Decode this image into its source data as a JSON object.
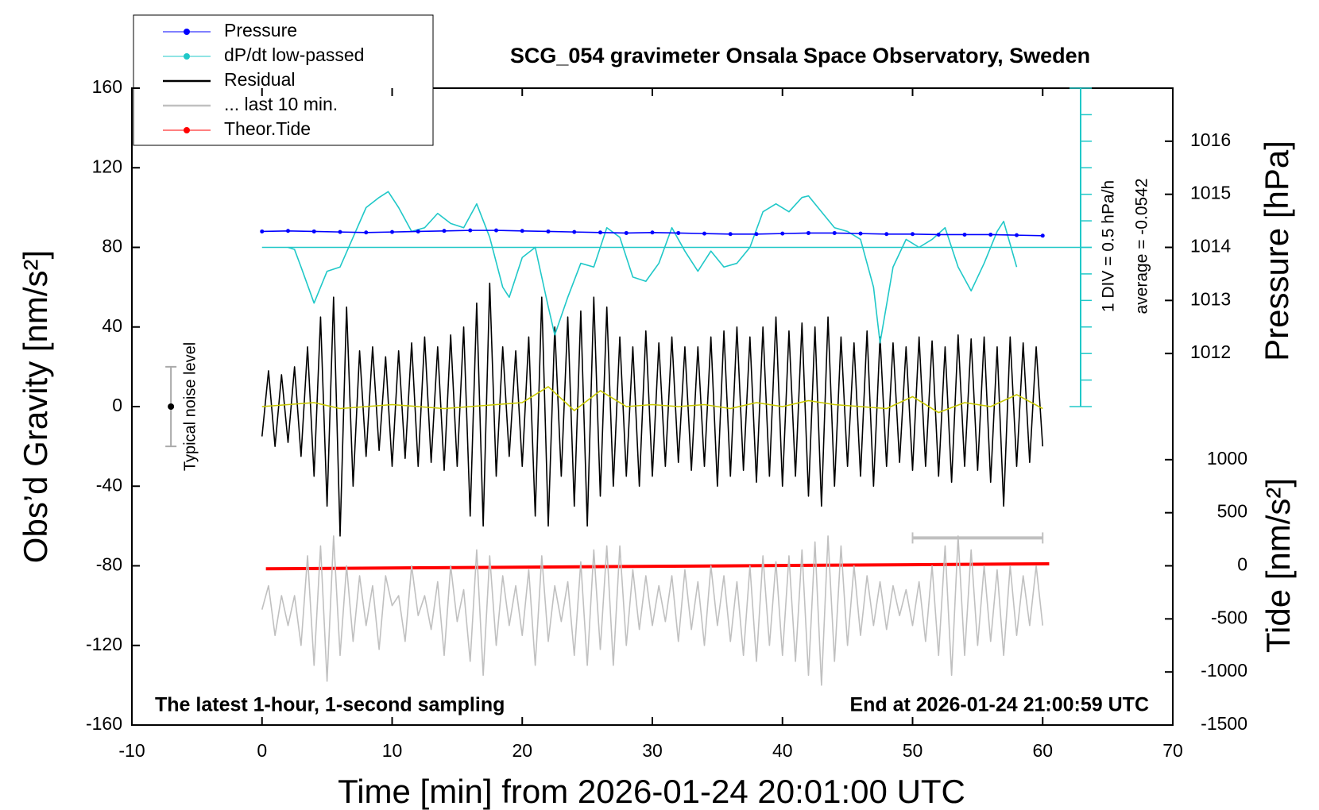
{
  "chart_data": [
    {
      "type": "line",
      "title": "SCG_054 gravimeter Onsala Space Observatory, Sweden",
      "x_label": "Time [min] from 2026-01-24 20:01:00 UTC",
      "y_label": "Obs’d Gravity [nm/s²]",
      "xlim": [
        -10,
        70
      ],
      "xticks": [
        -10,
        0,
        10,
        20,
        30,
        40,
        50,
        60,
        70
      ],
      "ylim": [
        -160,
        160
      ],
      "yticks": [
        -160,
        -120,
        -80,
        -40,
        0,
        40,
        80,
        120,
        160
      ],
      "annotations": [
        "The latest 1-hour, 1-second sampling",
        "End at 2026-01-24 21:00:59 UTC"
      ],
      "noise_bar": {
        "label": "Typical noise level",
        "x": -7,
        "value": 0,
        "error": 20
      },
      "last10_bar": {
        "x": [
          50,
          60
        ],
        "y": -66
      },
      "series": [
        {
          "name": "Residual",
          "color": "#000000",
          "x": [
            0,
            0.5,
            1,
            1.5,
            2,
            2.5,
            3,
            3.5,
            4,
            4.5,
            5,
            5.5,
            6,
            6.5,
            7,
            7.5,
            8,
            8.5,
            9,
            9.5,
            10,
            10.5,
            11,
            11.5,
            12,
            12.5,
            13,
            13.5,
            14,
            14.5,
            15,
            15.5,
            16,
            16.5,
            17,
            17.5,
            18,
            18.5,
            19,
            19.5,
            20,
            20.5,
            21,
            21.5,
            22,
            22.5,
            23,
            23.5,
            24,
            24.5,
            25,
            25.5,
            26,
            26.5,
            27,
            27.5,
            28,
            28.5,
            29,
            29.5,
            30,
            30.5,
            31,
            31.5,
            32,
            32.5,
            33,
            33.5,
            34,
            34.5,
            35,
            35.5,
            36,
            36.5,
            37,
            37.5,
            38,
            38.5,
            39,
            39.5,
            40,
            40.5,
            41,
            41.5,
            42,
            42.5,
            43,
            43.5,
            44,
            44.5,
            45,
            45.5,
            46,
            46.5,
            47,
            47.5,
            48,
            48.5,
            49,
            49.5,
            50,
            50.5,
            51,
            51.5,
            52,
            52.5,
            53,
            53.5,
            54,
            54.5,
            55,
            55.5,
            56,
            56.5,
            57,
            57.5,
            58,
            58.5,
            59,
            59.5,
            60
          ],
          "values": [
            -15,
            18,
            -20,
            16,
            -18,
            20,
            -25,
            30,
            -35,
            45,
            -50,
            55,
            -65,
            50,
            -40,
            28,
            -25,
            30,
            -22,
            25,
            -30,
            28,
            -26,
            32,
            -30,
            35,
            -28,
            30,
            -32,
            36,
            -30,
            40,
            -55,
            52,
            -60,
            62,
            -35,
            30,
            -25,
            28,
            -30,
            35,
            -55,
            55,
            -60,
            40,
            -35,
            45,
            -50,
            48,
            -60,
            55,
            -45,
            50,
            -40,
            35,
            -35,
            30,
            -40,
            38,
            -35,
            32,
            -30,
            35,
            -28,
            30,
            -32,
            30,
            -30,
            35,
            -40,
            38,
            -35,
            40,
            -32,
            35,
            -38,
            40,
            -35,
            45,
            -40,
            38,
            -35,
            42,
            -45,
            40,
            -50,
            45,
            -40,
            35,
            -30,
            32,
            -35,
            38,
            -40,
            35,
            -30,
            32,
            -28,
            30,
            -32,
            35,
            -30,
            33,
            -35,
            30,
            -38,
            36,
            -30,
            34,
            -32,
            35,
            -38,
            30,
            -50,
            35,
            -30,
            32,
            -28,
            30,
            -20
          ]
        },
        {
          "name": "... last 10 min.",
          "color": "#c0c0c0",
          "x": [
            0,
            0.5,
            1,
            1.5,
            2,
            2.5,
            3,
            3.5,
            4,
            4.5,
            5,
            5.5,
            6,
            6.5,
            7,
            7.5,
            8,
            8.5,
            9,
            9.5,
            10,
            10.5,
            11,
            11.5,
            12,
            12.5,
            13,
            13.5,
            14,
            14.5,
            15,
            15.5,
            16,
            16.5,
            17,
            17.5,
            18,
            18.5,
            19,
            19.5,
            20,
            20.5,
            21,
            21.5,
            22,
            22.5,
            23,
            23.5,
            24,
            24.5,
            25,
            25.5,
            26,
            26.5,
            27,
            27.5,
            28,
            28.5,
            29,
            29.5,
            30,
            30.5,
            31,
            31.5,
            32,
            32.5,
            33,
            33.5,
            34,
            34.5,
            35,
            35.5,
            36,
            36.5,
            37,
            37.5,
            38,
            38.5,
            39,
            39.5,
            40,
            40.5,
            41,
            41.5,
            42,
            42.5,
            43,
            43.5,
            44,
            44.5,
            45,
            45.5,
            46,
            46.5,
            47,
            47.5,
            48,
            48.5,
            49,
            49.5,
            50,
            50.5,
            51,
            51.5,
            52,
            52.5,
            53,
            53.5,
            54,
            54.5,
            55,
            55.5,
            56,
            56.5,
            57,
            57.5,
            58,
            58.5,
            59,
            59.5,
            60
          ],
          "values": [
            -102,
            -90,
            -115,
            -95,
            -110,
            -95,
            -120,
            -75,
            -130,
            -70,
            -138,
            -65,
            -125,
            -80,
            -118,
            -85,
            -110,
            -90,
            -122,
            -85,
            -100,
            -95,
            -118,
            -80,
            -105,
            -95,
            -112,
            -88,
            -125,
            -80,
            -108,
            -92,
            -128,
            -72,
            -135,
            -75,
            -120,
            -85,
            -110,
            -90,
            -115,
            -82,
            -130,
            -75,
            -118,
            -90,
            -108,
            -88,
            -125,
            -78,
            -130,
            -72,
            -122,
            -70,
            -130,
            -70,
            -120,
            -82,
            -112,
            -85,
            -110,
            -90,
            -108,
            -85,
            -118,
            -82,
            -112,
            -88,
            -120,
            -80,
            -110,
            -85,
            -118,
            -88,
            -125,
            -80,
            -128,
            -75,
            -120,
            -78,
            -125,
            -75,
            -128,
            -72,
            -135,
            -68,
            -140,
            -65,
            -128,
            -70,
            -120,
            -80,
            -115,
            -85,
            -110,
            -88,
            -112,
            -90,
            -105,
            -92,
            -110,
            -88,
            -118,
            -80,
            -125,
            -70,
            -135,
            -65,
            -125,
            -72,
            -120,
            -80,
            -118,
            -82,
            -125,
            -80,
            -115,
            -85,
            -110,
            -80,
            -110
          ]
        },
        {
          "color": "#c8c800",
          "x": [
            0,
            2,
            4,
            6,
            8,
            10,
            12,
            14,
            16,
            18,
            20,
            22,
            24,
            26,
            28,
            30,
            32,
            34,
            36,
            38,
            40,
            42,
            44,
            46,
            48,
            50,
            52,
            54,
            56,
            58,
            60
          ],
          "values": [
            0,
            1,
            2,
            -1,
            0,
            1,
            0,
            -1,
            0,
            1,
            2,
            10,
            -2,
            8,
            0,
            1,
            0,
            1,
            -1,
            2,
            0,
            3,
            1,
            0,
            -1,
            5,
            -3,
            2,
            0,
            6,
            -1
          ]
        }
      ]
    },
    {
      "type": "line",
      "y_label": "Pressure [hPa]",
      "ylim": [
        1005,
        1017
      ],
      "yticks": [
        1012,
        1013,
        1014,
        1015,
        1016
      ],
      "series": [
        {
          "name": "Pressure",
          "color": "#0000ff",
          "marker": true,
          "x": [
            0,
            2,
            4,
            6,
            8,
            10,
            12,
            14,
            16,
            18,
            20,
            22,
            24,
            26,
            28,
            30,
            32,
            34,
            36,
            38,
            40,
            42,
            44,
            46,
            48,
            50,
            52,
            54,
            56,
            58,
            60
          ],
          "values": [
            1014.3,
            1014.31,
            1014.3,
            1014.29,
            1014.28,
            1014.29,
            1014.3,
            1014.31,
            1014.32,
            1014.32,
            1014.31,
            1014.3,
            1014.29,
            1014.28,
            1014.27,
            1014.28,
            1014.27,
            1014.26,
            1014.25,
            1014.25,
            1014.26,
            1014.27,
            1014.27,
            1014.26,
            1014.25,
            1014.25,
            1014.24,
            1014.24,
            1014.24,
            1014.23,
            1014.22
          ]
        }
      ]
    },
    {
      "type": "line",
      "ylim": [
        -9,
        3
      ],
      "yticks": [
        -3,
        -2.5,
        -2,
        -1.5,
        -1,
        -0.5,
        0,
        0.5,
        1,
        1.5,
        2,
        2.5,
        3
      ],
      "reference_line": 0,
      "annotations": [
        "1 DIV = 0.5 hPa/h",
        "average = -0.0542"
      ],
      "series": [
        {
          "name": "dP/dt low-passed",
          "color": "#20c8c8",
          "marker": false,
          "x": [
            2,
            2.5,
            3,
            4,
            5,
            6,
            7,
            8,
            9,
            9.7,
            10.5,
            11.5,
            12.5,
            13.5,
            14.5,
            15.5,
            16.5,
            17.5,
            18.5,
            19,
            20,
            21,
            22,
            22.5,
            23.5,
            24.5,
            25.5,
            26.5,
            27.5,
            28.5,
            29.5,
            30.5,
            31.5,
            32.5,
            33.5,
            34.5,
            35.5,
            36.5,
            37.5,
            38.5,
            39.5,
            40.5,
            41.5,
            42,
            43,
            44,
            45,
            46,
            47,
            47.5,
            48.5,
            49.5,
            50.5,
            51.5,
            52.5,
            53.5,
            54.5,
            55.5,
            56.5,
            57,
            58
          ],
          "values": [
            0,
            -0.04,
            -0.37,
            -1.05,
            -0.45,
            -0.37,
            0.19,
            0.75,
            0.94,
            1.05,
            0.75,
            0.3,
            0.37,
            0.64,
            0.45,
            0.37,
            0.82,
            0.19,
            -0.75,
            -0.94,
            -0.19,
            0,
            -1.12,
            -1.65,
            -0.94,
            -0.3,
            -0.37,
            0.37,
            0.19,
            -0.56,
            -0.64,
            -0.3,
            0.37,
            -0.07,
            -0.45,
            -0.07,
            -0.37,
            -0.3,
            0,
            0.67,
            0.82,
            0.67,
            0.94,
            0.97,
            0.67,
            0.37,
            0.3,
            0.15,
            -0.75,
            -1.8,
            -0.37,
            0.15,
            0,
            0.15,
            0.37,
            -0.37,
            -0.82,
            -0.3,
            0.3,
            0.49,
            -0.37
          ]
        }
      ]
    },
    {
      "type": "line",
      "y_label": "Tide [nm/s²]",
      "ylim": [
        -1500,
        4500
      ],
      "yticks": [
        -1500,
        -1000,
        -500,
        0,
        500,
        1000
      ],
      "series": [
        {
          "name": "Theor.Tide",
          "color": "#ff0000",
          "marker": true,
          "x": [
            0.3,
            60.5
          ],
          "values": [
            -28,
            19
          ]
        }
      ]
    }
  ]
}
